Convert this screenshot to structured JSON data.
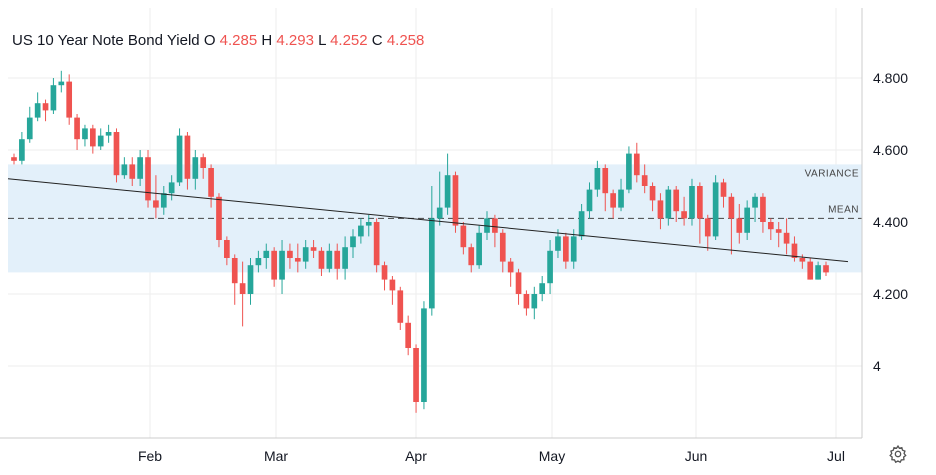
{
  "header": {
    "title": "US 10 Year Note Bond Yield",
    "o_label": "O",
    "o_value": "4.285",
    "h_label": "H",
    "h_value": "4.293",
    "l_label": "L",
    "l_value": "4.252",
    "c_label": "C",
    "c_value": "4.258"
  },
  "colors": {
    "up": "#26a69a",
    "down": "#ef5350",
    "band": "#e3f0fa",
    "grid": "#eeeeee",
    "text": "#131722"
  },
  "icons": {
    "settings": "gear-icon"
  },
  "chart_data": {
    "type": "candlestick",
    "y_ticks": [
      "4.800",
      "4.600",
      "4.400",
      "4.200",
      "4"
    ],
    "y_tick_values": [
      4.8,
      4.6,
      4.4,
      4.2,
      4.0
    ],
    "x_ticks": [
      "Feb",
      "Mar",
      "Apr",
      "May",
      "Jun",
      "Jul"
    ],
    "ylim": [
      3.88,
      4.94
    ],
    "annotations": {
      "variance_label": "VARIANCE",
      "mean_label": "MEAN",
      "variance_band": [
        4.26,
        4.56
      ],
      "mean": 4.41,
      "trendline": [
        4.52,
        4.29
      ]
    },
    "candles": [
      [
        4.58,
        4.57,
        4.59,
        4.56
      ],
      [
        4.57,
        4.63,
        4.65,
        4.56
      ],
      [
        4.63,
        4.69,
        4.72,
        4.62
      ],
      [
        4.69,
        4.73,
        4.76,
        4.68
      ],
      [
        4.73,
        4.71,
        4.74,
        4.68
      ],
      [
        4.71,
        4.78,
        4.8,
        4.7
      ],
      [
        4.78,
        4.79,
        4.82,
        4.76
      ],
      [
        4.79,
        4.69,
        4.81,
        4.67
      ],
      [
        4.69,
        4.63,
        4.7,
        4.6
      ],
      [
        4.63,
        4.66,
        4.67,
        4.61
      ],
      [
        4.66,
        4.61,
        4.67,
        4.59
      ],
      [
        4.61,
        4.64,
        4.66,
        4.6
      ],
      [
        4.64,
        4.65,
        4.67,
        4.62
      ],
      [
        4.65,
        4.53,
        4.66,
        4.51
      ],
      [
        4.53,
        4.56,
        4.58,
        4.52
      ],
      [
        4.56,
        4.52,
        4.58,
        4.5
      ],
      [
        4.52,
        4.58,
        4.6,
        4.5
      ],
      [
        4.58,
        4.46,
        4.6,
        4.44
      ],
      [
        4.46,
        4.44,
        4.53,
        4.41
      ],
      [
        4.44,
        4.48,
        4.5,
        4.42
      ],
      [
        4.48,
        4.51,
        4.53,
        4.46
      ],
      [
        4.51,
        4.64,
        4.66,
        4.5
      ],
      [
        4.64,
        4.52,
        4.65,
        4.49
      ],
      [
        4.52,
        4.58,
        4.6,
        4.49
      ],
      [
        4.58,
        4.55,
        4.59,
        4.52
      ],
      [
        4.55,
        4.47,
        4.56,
        4.44
      ],
      [
        4.47,
        4.35,
        4.48,
        4.33
      ],
      [
        4.35,
        4.3,
        4.36,
        4.28
      ],
      [
        4.3,
        4.23,
        4.31,
        4.17
      ],
      [
        4.23,
        4.2,
        4.29,
        4.11
      ],
      [
        4.2,
        4.28,
        4.3,
        4.17
      ],
      [
        4.28,
        4.3,
        4.32,
        4.26
      ],
      [
        4.3,
        4.32,
        4.34,
        4.27
      ],
      [
        4.32,
        4.24,
        4.33,
        4.22
      ],
      [
        4.24,
        4.32,
        4.35,
        4.2
      ],
      [
        4.32,
        4.3,
        4.34,
        4.27
      ],
      [
        4.3,
        4.29,
        4.34,
        4.26
      ],
      [
        4.29,
        4.33,
        4.35,
        4.27
      ],
      [
        4.33,
        4.32,
        4.35,
        4.3
      ],
      [
        4.32,
        4.27,
        4.33,
        4.25
      ],
      [
        4.27,
        4.32,
        4.34,
        4.26
      ],
      [
        4.32,
        4.27,
        4.34,
        4.24
      ],
      [
        4.27,
        4.33,
        4.36,
        4.24
      ],
      [
        4.33,
        4.36,
        4.38,
        4.3
      ],
      [
        4.36,
        4.39,
        4.41,
        4.34
      ],
      [
        4.39,
        4.4,
        4.42,
        4.36
      ],
      [
        4.4,
        4.28,
        4.41,
        4.26
      ],
      [
        4.28,
        4.24,
        4.29,
        4.21
      ],
      [
        4.24,
        4.21,
        4.25,
        4.17
      ],
      [
        4.21,
        4.12,
        4.22,
        4.1
      ],
      [
        4.12,
        4.05,
        4.14,
        4.03
      ],
      [
        4.05,
        3.9,
        4.06,
        3.87
      ],
      [
        3.9,
        4.16,
        4.18,
        3.88
      ],
      [
        4.16,
        4.41,
        4.5,
        4.14
      ],
      [
        4.41,
        4.44,
        4.54,
        4.39
      ],
      [
        4.44,
        4.53,
        4.59,
        4.42
      ],
      [
        4.53,
        4.39,
        4.54,
        4.37
      ],
      [
        4.39,
        4.33,
        4.4,
        4.31
      ],
      [
        4.33,
        4.28,
        4.34,
        4.26
      ],
      [
        4.28,
        4.37,
        4.39,
        4.27
      ],
      [
        4.37,
        4.41,
        4.43,
        4.35
      ],
      [
        4.41,
        4.37,
        4.42,
        4.33
      ],
      [
        4.37,
        4.29,
        4.38,
        4.26
      ],
      [
        4.29,
        4.26,
        4.3,
        4.22
      ],
      [
        4.26,
        4.2,
        4.27,
        4.17
      ],
      [
        4.2,
        4.16,
        4.21,
        4.14
      ],
      [
        4.16,
        4.2,
        4.22,
        4.13
      ],
      [
        4.2,
        4.23,
        4.25,
        4.18
      ],
      [
        4.23,
        4.32,
        4.35,
        4.2
      ],
      [
        4.32,
        4.36,
        4.38,
        4.3
      ],
      [
        4.36,
        4.29,
        4.37,
        4.27
      ],
      [
        4.29,
        4.36,
        4.38,
        4.27
      ],
      [
        4.36,
        4.43,
        4.45,
        4.35
      ],
      [
        4.43,
        4.49,
        4.51,
        4.41
      ],
      [
        4.49,
        4.55,
        4.57,
        4.47
      ],
      [
        4.55,
        4.48,
        4.56,
        4.43
      ],
      [
        4.48,
        4.44,
        4.49,
        4.41
      ],
      [
        4.44,
        4.49,
        4.52,
        4.43
      ],
      [
        4.49,
        4.59,
        4.61,
        4.48
      ],
      [
        4.59,
        4.53,
        4.62,
        4.51
      ],
      [
        4.53,
        4.5,
        4.56,
        4.48
      ],
      [
        4.5,
        4.46,
        4.51,
        4.43
      ],
      [
        4.46,
        4.41,
        4.48,
        4.38
      ],
      [
        4.41,
        4.49,
        4.5,
        4.39
      ],
      [
        4.49,
        4.43,
        4.5,
        4.4
      ],
      [
        4.43,
        4.41,
        4.47,
        4.39
      ],
      [
        4.41,
        4.5,
        4.52,
        4.39
      ],
      [
        4.5,
        4.41,
        4.51,
        4.34
      ],
      [
        4.41,
        4.36,
        4.42,
        4.32
      ],
      [
        4.36,
        4.51,
        4.53,
        4.35
      ],
      [
        4.51,
        4.47,
        4.52,
        4.44
      ],
      [
        4.47,
        4.41,
        4.48,
        4.31
      ],
      [
        4.41,
        4.37,
        4.45,
        4.34
      ],
      [
        4.37,
        4.44,
        4.46,
        4.35
      ],
      [
        4.44,
        4.47,
        4.48,
        4.4
      ],
      [
        4.47,
        4.4,
        4.48,
        4.37
      ],
      [
        4.4,
        4.38,
        4.41,
        4.35
      ],
      [
        4.38,
        4.37,
        4.4,
        4.33
      ],
      [
        4.37,
        4.34,
        4.41,
        4.31
      ],
      [
        4.34,
        4.3,
        4.36,
        4.29
      ],
      [
        4.3,
        4.29,
        4.31,
        4.27
      ],
      [
        4.29,
        4.24,
        4.3,
        4.24
      ],
      [
        4.24,
        4.28,
        4.29,
        4.24
      ],
      [
        4.28,
        4.26,
        4.29,
        4.25
      ]
    ]
  }
}
